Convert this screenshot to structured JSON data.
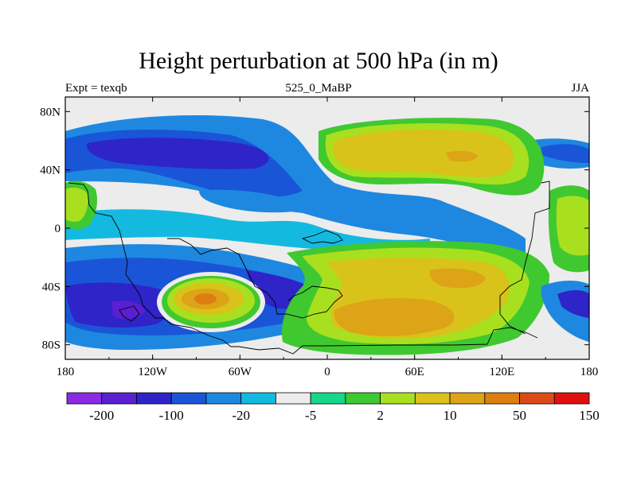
{
  "title": "Height perturbation at 500 hPa (in m)",
  "left_label": "Expt = texqb",
  "center_label": "525_0_MaBP",
  "right_label": "JJA",
  "map": {
    "lon_ticks": [
      "180",
      "120W",
      "60W",
      "0",
      "60E",
      "120E",
      "180"
    ],
    "lat_ticks": [
      "80N",
      "40N",
      "0",
      "40S",
      "80S"
    ],
    "background_color": "#ececec",
    "coastline_color": "#000000"
  },
  "colorbar": {
    "colors": [
      "#8a2be2",
      "#5a1fd0",
      "#2e24c8",
      "#1a55d8",
      "#1e88e0",
      "#14b9e0",
      "#ececec",
      "#16d68a",
      "#40c830",
      "#a8e020",
      "#d9c21a",
      "#dca416",
      "#dc7e10",
      "#dc4a18",
      "#e11010"
    ],
    "labels": [
      "-200",
      "-100",
      "-20",
      "-5",
      "2",
      "10",
      "50",
      "150"
    ]
  }
}
